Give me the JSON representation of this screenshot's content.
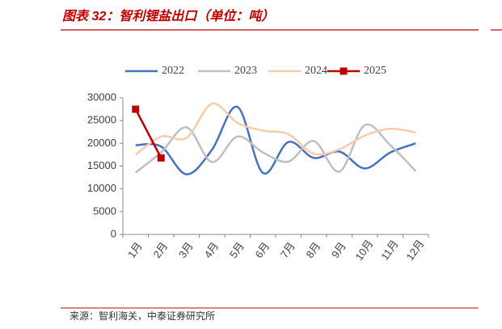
{
  "chart_data": {
    "type": "line",
    "title": "图表 32：智利锂盐出口（单位：吨）",
    "source": "来源：智利海关，中泰证券研究所",
    "categories": [
      "1月",
      "2月",
      "3月",
      "4月",
      "5月",
      "6月",
      "7月",
      "8月",
      "9月",
      "10月",
      "11月",
      "12月"
    ],
    "series": [
      {
        "name": "2022",
        "color": "#4472c4",
        "values": [
          19600,
          19300,
          13200,
          18600,
          28000,
          13500,
          20300,
          16800,
          18200,
          14500,
          18000,
          20000
        ]
      },
      {
        "name": "2023",
        "color": "#bfbfbf",
        "values": [
          13600,
          18000,
          23500,
          15900,
          21500,
          18000,
          16000,
          20500,
          13800,
          24000,
          19600,
          13900
        ]
      },
      {
        "name": "2024",
        "color": "#f8cbad",
        "values": [
          17500,
          21500,
          21200,
          28700,
          24500,
          22800,
          22000,
          17700,
          18700,
          21700,
          23200,
          22400
        ]
      },
      {
        "name": "2025",
        "color": "#c00000",
        "marker": "square",
        "values": [
          27500,
          16800,
          null,
          null,
          null,
          null,
          null,
          null,
          null,
          null,
          null,
          null
        ]
      }
    ],
    "ylim": [
      0,
      30000
    ],
    "yticks": [
      0,
      5000,
      10000,
      15000,
      20000,
      25000,
      30000
    ],
    "smooth": true,
    "legend": "top"
  }
}
